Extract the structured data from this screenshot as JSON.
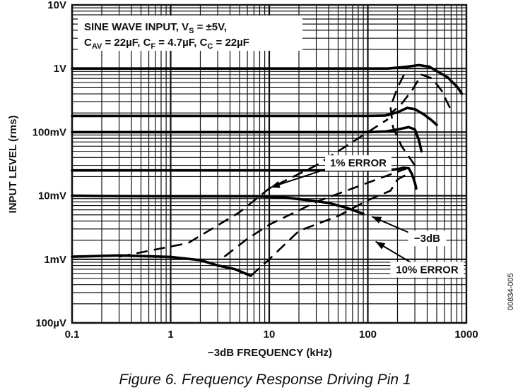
{
  "figure": {
    "caption": "Figure 6. Frequency Response Driving Pin 1",
    "doc_id": "00834-005"
  },
  "chart_data": {
    "type": "line",
    "title": "",
    "xlabel": "−3dB FREQUENCY (kHz)",
    "ylabel": "INPUT LEVEL (rms)",
    "x_scale": "log",
    "y_scale": "log",
    "xlim": [
      0.1,
      1000
    ],
    "ylim": [
      0.0001,
      10
    ],
    "grid": true,
    "x_ticks": [
      {
        "value": 0.1,
        "label": "0.1"
      },
      {
        "value": 1,
        "label": "1"
      },
      {
        "value": 10,
        "label": "10"
      },
      {
        "value": 100,
        "label": "100"
      },
      {
        "value": 1000,
        "label": "1000"
      }
    ],
    "y_ticks": [
      {
        "value": 0.0001,
        "label": "100µV"
      },
      {
        "value": 0.001,
        "label": "1mV"
      },
      {
        "value": 0.01,
        "label": "10mV"
      },
      {
        "value": 0.1,
        "label": "100mV"
      },
      {
        "value": 1,
        "label": "1V"
      },
      {
        "value": 10,
        "label": "10V"
      }
    ],
    "conditions": {
      "line1": "SINE WAVE INPUT, V",
      "line1_sub": "S",
      "line1_rest": " = ±5V,",
      "line2_a": "C",
      "line2_a_sub": "AV",
      "line2_b": " = 22µF, C",
      "line2_b_sub": "F",
      "line2_c": " = 4.7µF, C",
      "line2_c_sub": "C",
      "line2_d": " = 22µF"
    },
    "series": [
      {
        "style": "solid",
        "x": [
          0.1,
          10,
          100,
          160,
          240,
          330,
          420,
          520,
          650,
          820,
          900
        ],
        "y": [
          1.0,
          1.0,
          1.0,
          1.0,
          1.06,
          1.13,
          1.07,
          0.88,
          0.72,
          0.5,
          0.4
        ]
      },
      {
        "style": "solid",
        "x": [
          0.1,
          10,
          100,
          150,
          200,
          250,
          300,
          370,
          440,
          500
        ],
        "y": [
          0.18,
          0.18,
          0.18,
          0.182,
          0.205,
          0.24,
          0.23,
          0.19,
          0.155,
          0.13
        ]
      },
      {
        "style": "solid",
        "x": [
          0.1,
          10,
          100,
          150,
          200,
          260,
          300,
          330,
          350
        ],
        "y": [
          0.1,
          0.1,
          0.1,
          0.102,
          0.11,
          0.12,
          0.11,
          0.075,
          0.05
        ]
      },
      {
        "style": "solid",
        "x": [
          0.1,
          10,
          100,
          150,
          200,
          230,
          260,
          280,
          300,
          310
        ],
        "y": [
          0.025,
          0.025,
          0.025,
          0.025,
          0.0262,
          0.0275,
          0.027,
          0.022,
          0.016,
          0.013
        ]
      },
      {
        "style": "solid",
        "x": [
          0.1,
          0.2,
          1,
          7,
          15,
          25,
          40,
          60,
          90
        ],
        "y": [
          0.01,
          0.0099,
          0.0098,
          0.0098,
          0.0093,
          0.0085,
          0.0077,
          0.0065,
          0.0052
        ]
      },
      {
        "style": "solid",
        "x": [
          0.1,
          0.3,
          1,
          2,
          3,
          4.5,
          6.5
        ],
        "y": [
          0.0011,
          0.00115,
          0.00109,
          0.00097,
          0.0008,
          0.0007,
          0.00055
        ]
      },
      {
        "style": "dashed",
        "x": [
          0.3,
          1.5,
          5,
          10,
          30,
          100,
          160
        ],
        "y": [
          0.0011,
          0.0018,
          0.0055,
          0.013,
          0.03,
          0.1,
          0.16
        ]
      },
      {
        "style": "dashed",
        "x": [
          160,
          220,
          280,
          350,
          450,
          560,
          700
        ],
        "y": [
          0.18,
          0.28,
          0.45,
          0.8,
          0.7,
          0.45,
          0.22
        ]
      },
      {
        "style": "dashed",
        "x": [
          3.5,
          6,
          10,
          30,
          100,
          300
        ],
        "y": [
          0.0011,
          0.0021,
          0.0035,
          0.008,
          0.016,
          0.03
        ]
      },
      {
        "style": "dashed",
        "x": [
          300,
          220,
          180,
          170,
          200,
          250
        ],
        "y": [
          0.03,
          0.06,
          0.12,
          0.25,
          0.5,
          1.0
        ]
      },
      {
        "style": "dashed",
        "x": [
          6.5,
          10,
          20,
          50,
          100,
          170,
          200,
          240,
          270
        ],
        "y": [
          0.00055,
          0.001,
          0.0028,
          0.0048,
          0.0085,
          0.012,
          0.018,
          0.021,
          0.025
        ]
      }
    ],
    "annotations": [
      {
        "text": "1% ERROR",
        "label_x": 80,
        "label_y": 0.0295,
        "arrow_from_x": 40,
        "arrow_from_y": 0.027,
        "arrow_to_x": 10.3,
        "arrow_to_y": 0.0135,
        "anchor": "middle"
      },
      {
        "text": "−3dB",
        "label_x": 400,
        "label_y": 0.00192,
        "arrow_from_x": 300,
        "arrow_from_y": 0.0024,
        "arrow_to_x": 110,
        "arrow_to_y": 0.0047,
        "anchor": "middle"
      },
      {
        "text": "10% ERROR",
        "label_x": 400,
        "label_y": 0.00062,
        "arrow_from_x": 300,
        "arrow_from_y": 0.00082,
        "arrow_to_x": 120,
        "arrow_to_y": 0.0019,
        "anchor": "middle"
      }
    ]
  }
}
